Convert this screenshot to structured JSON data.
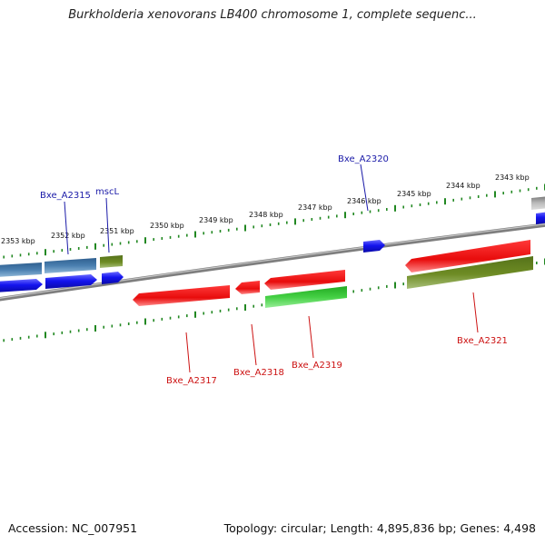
{
  "map": {
    "title": "Burkholderia xenovorans LB400 chromosome 1, complete sequenc...",
    "accession_text": "Accession: NC_007951",
    "summary_text": "Topology: circular; Length: 4,895,836 bp; Genes: 4,498"
  },
  "scale_labels": [
    "2353 kbp",
    "2352 kbp",
    "2351 kbp",
    "2350 kbp",
    "2349 kbp",
    "2348 kbp",
    "2347 kbp",
    "2346 kbp",
    "2345 kbp",
    "2344 kbp",
    "2343 kbp"
  ],
  "gene_labels": {
    "forward": [
      "Bxe_A2315",
      "mscL",
      "Bxe_A2320"
    ],
    "reverse": [
      "Bxe_A2317",
      "Bxe_A2318",
      "Bxe_A2319",
      "Bxe_A2321"
    ]
  },
  "colors": {
    "forward_label": "#1a1aa8",
    "reverse_label": "#cc1111",
    "backbone": "#888888",
    "tick": "#228822",
    "blue_gene": "#1a1aee",
    "steel_gene": "#4a7fb0",
    "red_gene": "#ee1111",
    "olive_gene": "#6b8a22",
    "green_gene": "#33cc33"
  }
}
